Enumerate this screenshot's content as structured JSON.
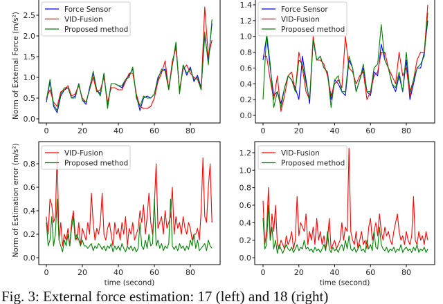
{
  "caption": "Fig. 3: External force estimation: 17 (left) and 18 (right)",
  "colors": {
    "force": "#0000ff",
    "vid": "#ff0000",
    "proposed": "#008000"
  },
  "chart_data": [
    {
      "type": "line",
      "panel": "top-left",
      "ylabel": "Norm of External Force (m/s²)",
      "xlabel": "",
      "x_start": 0,
      "x_step": 2,
      "xlim": [
        -4,
        96
      ],
      "ylim": [
        0,
        2.8
      ],
      "xticks": [
        0,
        20,
        40,
        60,
        80
      ],
      "yticks": [
        "0.0",
        "0.5",
        "1.0",
        "1.5",
        "2.0",
        "2.5"
      ],
      "legend_position": "top-left",
      "series": [
        {
          "name": "Force Sensor",
          "color_key": "force",
          "values": [
            0.4,
            0.9,
            0.3,
            0.15,
            0.55,
            0.7,
            0.75,
            0.5,
            0.55,
            0.85,
            0.45,
            0.35,
            0.75,
            1.1,
            0.7,
            0.6,
            1.1,
            0.3,
            0.85,
            0.85,
            0.8,
            0.75,
            0.95,
            1.05,
            1.2,
            0.55,
            0.2,
            0.5,
            0.55,
            0.5,
            0.6,
            1.0,
            1.15,
            1.2,
            0.75,
            1.3,
            1.8,
            0.65,
            1.3,
            1.05,
            1.25,
            0.9,
            1.05,
            0.75,
            2.0,
            1.4,
            2.3
          ]
        },
        {
          "name": "VID-Fusion",
          "color_key": "vid",
          "values": [
            0.5,
            0.7,
            0.4,
            0.3,
            0.65,
            0.7,
            0.8,
            0.55,
            0.6,
            0.8,
            0.5,
            0.4,
            0.7,
            1.0,
            0.65,
            0.7,
            1.0,
            0.4,
            0.75,
            0.75,
            0.7,
            0.7,
            0.9,
            1.1,
            1.1,
            0.6,
            0.3,
            0.25,
            0.25,
            0.3,
            0.5,
            0.9,
            1.1,
            1.4,
            0.7,
            1.4,
            1.7,
            0.7,
            1.2,
            1.3,
            1.1,
            1.0,
            0.95,
            0.7,
            2.7,
            1.5,
            1.9
          ]
        },
        {
          "name": "Proposed method",
          "color_key": "proposed",
          "values": [
            0.45,
            0.95,
            0.35,
            0.2,
            0.6,
            0.75,
            0.75,
            0.5,
            0.5,
            0.85,
            0.45,
            0.4,
            0.7,
            1.15,
            0.7,
            0.55,
            1.1,
            0.25,
            0.85,
            0.85,
            0.8,
            0.8,
            0.95,
            1.0,
            1.25,
            0.5,
            0.3,
            0.55,
            0.5,
            0.5,
            0.6,
            0.95,
            1.2,
            1.15,
            0.7,
            1.3,
            1.85,
            0.6,
            1.3,
            1.1,
            1.2,
            0.95,
            1.0,
            0.7,
            2.1,
            1.3,
            2.4
          ]
        }
      ]
    },
    {
      "type": "line",
      "panel": "top-right",
      "ylabel": "",
      "xlabel": "",
      "x_start": 0,
      "x_step": 2,
      "xlim": [
        -4,
        96
      ],
      "ylim": [
        0,
        1.45
      ],
      "xticks": [
        0,
        20,
        40,
        60,
        80
      ],
      "yticks": [
        "0.0",
        "0.2",
        "0.4",
        "0.6",
        "0.8",
        "1.0",
        "1.2",
        "1.4"
      ],
      "legend_position": "top-left",
      "series": [
        {
          "name": "Force Sensor",
          "color_key": "force",
          "values": [
            0.7,
            1.0,
            0.6,
            0.25,
            0.3,
            0.15,
            0.35,
            0.5,
            0.45,
            0.35,
            0.2,
            0.75,
            0.45,
            0.15,
            0.95,
            0.7,
            0.75,
            0.6,
            0.55,
            0.2,
            0.45,
            0.4,
            0.3,
            0.25,
            0.7,
            0.6,
            0.3,
            0.45,
            0.6,
            0.3,
            0.25,
            0.55,
            0.5,
            0.9,
            0.7,
            0.6,
            0.4,
            0.3,
            0.5,
            0.3,
            0.7,
            0.2,
            0.4,
            0.6,
            0.6,
            0.8,
            1.2
          ]
        },
        {
          "name": "VID-Fusion",
          "color_key": "vid",
          "values": [
            0.75,
            0.75,
            0.45,
            0.2,
            0.5,
            0.05,
            0.25,
            0.5,
            0.55,
            0.3,
            0.8,
            0.6,
            0.3,
            0.2,
            1.0,
            0.7,
            0.7,
            0.65,
            0.5,
            0.25,
            0.4,
            0.45,
            0.35,
            1.0,
            0.6,
            0.55,
            0.4,
            0.5,
            0.55,
            0.2,
            0.3,
            0.5,
            0.55,
            0.8,
            0.8,
            0.6,
            0.5,
            0.4,
            0.8,
            0.5,
            0.6,
            0.25,
            0.45,
            0.7,
            0.8,
            0.8,
            1.4
          ]
        },
        {
          "name": "Proposed method",
          "color_key": "proposed",
          "values": [
            0.2,
            1.05,
            0.65,
            0.1,
            0.3,
            0.1,
            0.35,
            0.5,
            0.45,
            0.3,
            0.7,
            0.65,
            0.4,
            0.2,
            0.95,
            0.7,
            0.75,
            0.6,
            0.55,
            0.1,
            0.45,
            0.5,
            0.3,
            0.3,
            0.75,
            0.6,
            0.3,
            0.45,
            0.65,
            0.3,
            0.3,
            0.6,
            0.65,
            1.15,
            0.7,
            0.6,
            0.4,
            0.35,
            0.55,
            0.3,
            0.8,
            0.3,
            0.45,
            0.6,
            0.65,
            0.75,
            1.3
          ]
        }
      ]
    },
    {
      "type": "line",
      "panel": "bottom-left",
      "ylabel": "Norm of Estimation error (m/s²)",
      "xlabel": "time (second)",
      "x_start": 0,
      "x_step": 1,
      "xlim": [
        -4,
        96
      ],
      "ylim": [
        0,
        0.95
      ],
      "xticks": [
        0,
        20,
        40,
        60,
        80
      ],
      "yticks": [
        "0.0",
        "0.2",
        "0.4",
        "0.6",
        "0.8"
      ],
      "legend_position": "top-left",
      "series": [
        {
          "name": "VID-Fusion",
          "color_key": "vid",
          "values": [
            0.35,
            0.2,
            0.5,
            0.45,
            0.3,
            0.35,
            0.9,
            0.15,
            0.3,
            0.1,
            0.2,
            0.15,
            0.25,
            0.1,
            0.3,
            0.4,
            0.2,
            0.15,
            0.3,
            0.1,
            0.25,
            0.2,
            0.15,
            0.3,
            0.2,
            0.55,
            0.3,
            0.15,
            0.25,
            0.2,
            0.3,
            0.55,
            0.2,
            0.15,
            0.25,
            0.3,
            0.2,
            0.1,
            0.3,
            0.2,
            0.25,
            0.15,
            0.3,
            0.2,
            0.35,
            0.1,
            0.25,
            0.2,
            0.3,
            0.15,
            0.2,
            0.25,
            0.4,
            0.3,
            0.45,
            0.2,
            0.35,
            0.55,
            0.3,
            0.2,
            0.45,
            0.8,
            0.25,
            0.3,
            0.35,
            0.2,
            0.4,
            0.25,
            0.3,
            0.35,
            0.6,
            0.2,
            0.35,
            0.25,
            0.3,
            0.2,
            0.35,
            0.25,
            0.2,
            0.3,
            0.25,
            0.15,
            0.2,
            0.2,
            0.25,
            0.15,
            0.4,
            0.85,
            0.35,
            0.3,
            0.6,
            0.8,
            0.3
          ]
        },
        {
          "name": "Proposed method",
          "color_key": "proposed",
          "values": [
            0.3,
            0.1,
            0.15,
            0.35,
            0.1,
            0.2,
            0.5,
            0.15,
            0.1,
            0.05,
            0.15,
            0.1,
            0.2,
            0.1,
            0.25,
            0.35,
            0.15,
            0.2,
            0.15,
            0.1,
            0.15,
            0.1,
            0.1,
            0.08,
            0.1,
            0.12,
            0.06,
            0.1,
            0.08,
            0.12,
            0.1,
            0.07,
            0.1,
            0.06,
            0.1,
            0.08,
            0.12,
            0.05,
            0.1,
            0.07,
            0.1,
            0.06,
            0.12,
            0.08,
            0.05,
            0.1,
            0.07,
            0.1,
            0.06,
            0.09,
            0.05,
            0.08,
            0.3,
            0.1,
            0.07,
            0.15,
            0.08,
            0.2,
            0.1,
            0.12,
            0.5,
            0.1,
            0.15,
            0.08,
            0.12,
            0.06,
            0.1,
            0.08,
            0.12,
            0.5,
            0.1,
            0.07,
            0.1,
            0.06,
            0.12,
            0.08,
            0.1,
            0.06,
            0.1,
            0.07,
            0.15,
            0.1,
            0.2,
            0.08,
            0.15,
            0.06,
            0.08,
            0.1,
            0.12,
            0.06,
            0.15,
            0.1,
            0.08
          ]
        }
      ]
    },
    {
      "type": "line",
      "panel": "bottom-right",
      "ylabel": "",
      "xlabel": "time (second)",
      "x_start": 0,
      "x_step": 1,
      "xlim": [
        -4,
        96
      ],
      "ylim": [
        0,
        1.3
      ],
      "xticks": [
        0,
        20,
        40,
        60,
        80
      ],
      "yticks": [
        "0.0",
        "0.2",
        "0.4",
        "0.6",
        "0.8",
        "1.0",
        "1.2"
      ],
      "legend_position": "top-left",
      "series": [
        {
          "name": "VID-Fusion",
          "color_key": "vid",
          "values": [
            0.65,
            0.15,
            0.3,
            0.8,
            0.2,
            0.5,
            0.3,
            0.6,
            0.15,
            0.1,
            0.2,
            0.15,
            0.1,
            0.25,
            0.15,
            0.2,
            0.3,
            0.1,
            0.2,
            0.7,
            0.25,
            0.4,
            0.35,
            0.3,
            0.5,
            0.15,
            0.3,
            0.2,
            0.35,
            0.15,
            0.45,
            0.2,
            0.3,
            0.15,
            0.25,
            0.1,
            0.2,
            0.45,
            0.1,
            0.15,
            0.2,
            0.1,
            0.15,
            0.2,
            0.4,
            0.2,
            0.35,
            0.3,
            1.25,
            0.3,
            0.2,
            0.15,
            0.3,
            0.1,
            0.2,
            0.3,
            0.15,
            0.2,
            0.1,
            0.35,
            0.45,
            0.2,
            0.3,
            0.4,
            0.25,
            0.5,
            0.3,
            0.2,
            0.35,
            0.25,
            0.3,
            0.2,
            0.15,
            0.3,
            0.4,
            0.5,
            0.3,
            0.2,
            0.25,
            0.15,
            0.3,
            0.2,
            0.15,
            0.25,
            0.7,
            0.2,
            0.15,
            0.3,
            0.2,
            0.25,
            0.15,
            0.3,
            0.2
          ]
        },
        {
          "name": "Proposed method",
          "color_key": "proposed",
          "values": [
            0.45,
            0.1,
            0.15,
            0.6,
            0.2,
            0.35,
            0.1,
            0.2,
            0.05,
            0.15,
            0.1,
            0.05,
            0.1,
            0.15,
            0.1,
            0.08,
            0.12,
            0.06,
            0.1,
            0.15,
            0.08,
            0.12,
            0.1,
            0.2,
            0.1,
            0.12,
            0.08,
            0.1,
            0.06,
            0.12,
            0.08,
            0.1,
            0.06,
            0.1,
            0.15,
            0.08,
            0.3,
            0.1,
            0.06,
            0.12,
            0.08,
            0.1,
            0.06,
            0.12,
            0.15,
            0.08,
            0.2,
            0.1,
            0.25,
            0.1,
            0.08,
            0.12,
            0.06,
            0.1,
            0.15,
            0.08,
            0.1,
            0.06,
            0.2,
            0.1,
            0.15,
            0.08,
            0.3,
            0.12,
            0.1,
            0.35,
            0.15,
            0.1,
            0.08,
            0.12,
            0.06,
            0.1,
            0.08,
            0.12,
            0.06,
            0.1,
            0.08,
            0.15,
            0.06,
            0.1,
            0.12,
            0.08,
            0.1,
            0.06,
            0.12,
            0.08,
            0.15,
            0.06,
            0.1,
            0.08,
            0.12,
            0.06,
            0.1
          ]
        }
      ]
    }
  ]
}
